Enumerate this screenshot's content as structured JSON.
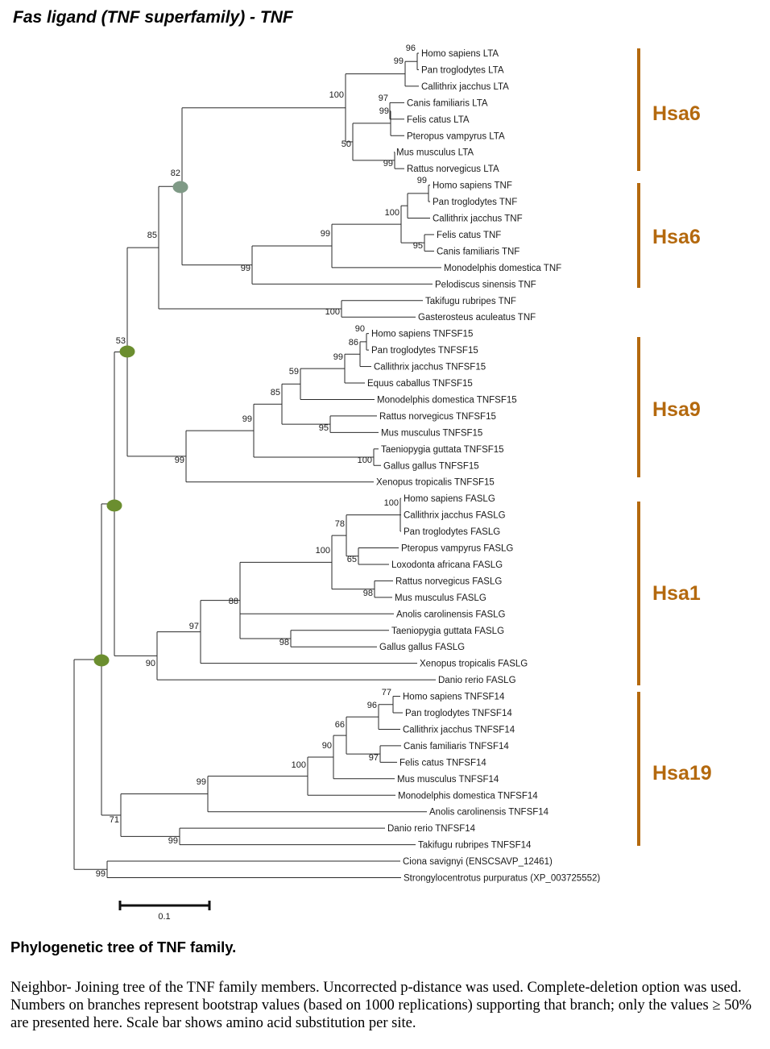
{
  "title": "Fas ligand (TNF superfamily)  -  TNF",
  "caption": {
    "title": "Phylogenetic tree of TNF family.",
    "body": "Neighbor- Joining  tree of the TNF family members. Uncorrected p-distance was used. Complete-deletion option was used. Numbers on branches represent bootstrap values (based on 1000 replications) supporting that branch; only the values ≥ 50% are presented here. Scale bar shows amino acid substitution per site."
  },
  "scale_bar": {
    "label": "0.1"
  },
  "colors": {
    "group": "#b4690e",
    "node_marker_grey": "#7f9a86",
    "node_marker_green": "#6b8e2f"
  },
  "leaves": [
    "Homo sapiens LTA",
    "Pan troglodytes LTA",
    "Callithrix jacchus LTA",
    "Canis familiaris LTA",
    "Felis catus LTA",
    "Pteropus vampyrus LTA",
    "Mus musculus LTA",
    "Rattus norvegicus LTA",
    "Homo sapiens TNF",
    "Pan troglodytes TNF",
    "Callithrix jacchus TNF",
    "Felis catus TNF",
    "Canis familiaris TNF",
    "Monodelphis domestica TNF",
    "Pelodiscus sinensis TNF",
    "Takifugu rubripes TNF",
    "Gasterosteus aculeatus TNF",
    "Homo sapiens TNFSF15",
    "Pan troglodytes TNFSF15",
    "Callithrix jacchus TNFSF15",
    "Equus caballus TNFSF15",
    "Monodelphis domestica TNFSF15",
    "Rattus norvegicus TNFSF15",
    "Mus musculus TNFSF15",
    "Taeniopygia guttata TNFSF15",
    "Gallus gallus TNFSF15",
    "Xenopus tropicalis TNFSF15",
    "Homo sapiens FASLG",
    "Callithrix jacchus FASLG",
    "Pan troglodytes FASLG",
    "Pteropus vampyrus FASLG",
    "Loxodonta africana FASLG",
    "Rattus norvegicus FASLG",
    "Mus musculus FASLG",
    "Anolis carolinensis FASLG",
    "Taeniopygia guttata FASLG",
    "Gallus gallus FASLG",
    "Xenopus tropicalis FASLG",
    "Danio rerio FASLG",
    "Homo sapiens TNFSF14",
    "Pan troglodytes TNFSF14",
    "Callithrix jacchus TNFSF14",
    "Canis familiaris TNFSF14",
    "Felis catus TNFSF14",
    "Mus musculus TNFSF14",
    "Monodelphis domestica TNFSF14",
    "Anolis carolinensis TNFSF14",
    "Danio rerio TNFSF14",
    "Takifugu rubripes TNFSF14",
    "Ciona savignyi (ENSCSAVP_12461)",
    "Strongylocentrotus purpuratus (XP_003725552)"
  ],
  "bootstrap": [
    "96",
    "99",
    "97",
    "99",
    "50",
    "99",
    "100",
    "99",
    "95",
    "100",
    "99",
    "99",
    "100",
    "82",
    "85",
    "90",
    "86",
    "99",
    "59",
    "95",
    "85",
    "100",
    "99",
    "99",
    "53",
    "100",
    "78",
    "65",
    "98",
    "100",
    "98",
    "88",
    "97",
    "90",
    "77",
    "96",
    "97",
    "66",
    "90",
    "100",
    "99",
    "99",
    "71",
    "99"
  ],
  "groups": [
    {
      "label": "Hsa6"
    },
    {
      "label": "Hsa6"
    },
    {
      "label": "Hsa9"
    },
    {
      "label": "Hsa1"
    },
    {
      "label": "Hsa19"
    }
  ]
}
